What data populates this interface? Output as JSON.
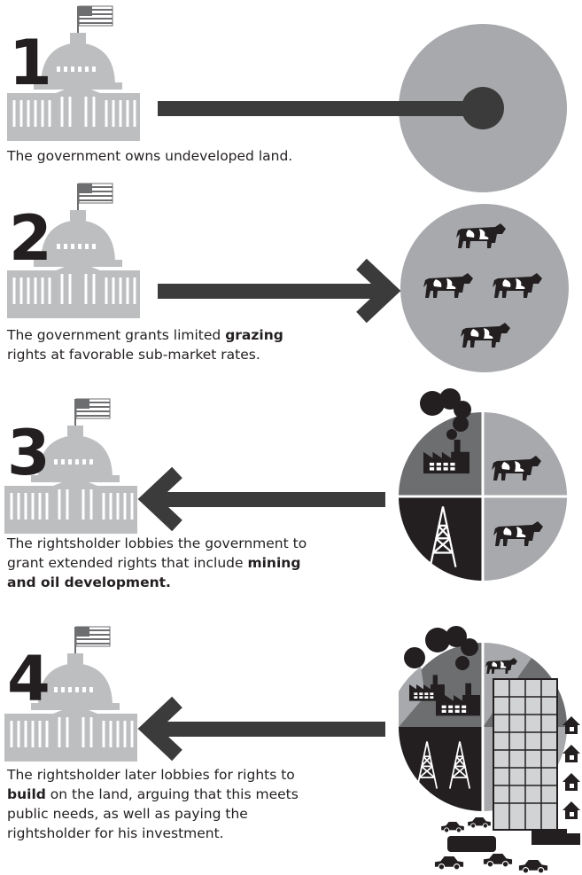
{
  "steps": [
    {
      "number": "1",
      "caption": [
        [
          {
            "text": "The government owns undeveloped land."
          }
        ]
      ]
    },
    {
      "number": "2",
      "caption": [
        [
          {
            "text": "The government grants limited "
          },
          {
            "text": "grazing",
            "bold": true
          }
        ],
        [
          {
            "text": "rights at favorable sub-market rates."
          }
        ]
      ]
    },
    {
      "number": "3",
      "caption": [
        [
          {
            "text": "The rightsholder lobbies the government to"
          }
        ],
        [
          {
            "text": "grant extended rights that include "
          },
          {
            "text": "mining",
            "bold": true
          }
        ],
        [
          {
            "text": "and oil development.",
            "bold": true
          }
        ]
      ]
    },
    {
      "number": "4",
      "caption": [
        [
          {
            "text": "The rightsholder later lobbies for rights to"
          }
        ],
        [
          {
            "text": "build",
            "bold": true
          },
          {
            "text": " on the land, arguing that this meets"
          }
        ],
        [
          {
            "text": "public needs, as well as paying the"
          }
        ],
        [
          {
            "text": "rightsholder for his investment."
          }
        ]
      ]
    }
  ]
}
